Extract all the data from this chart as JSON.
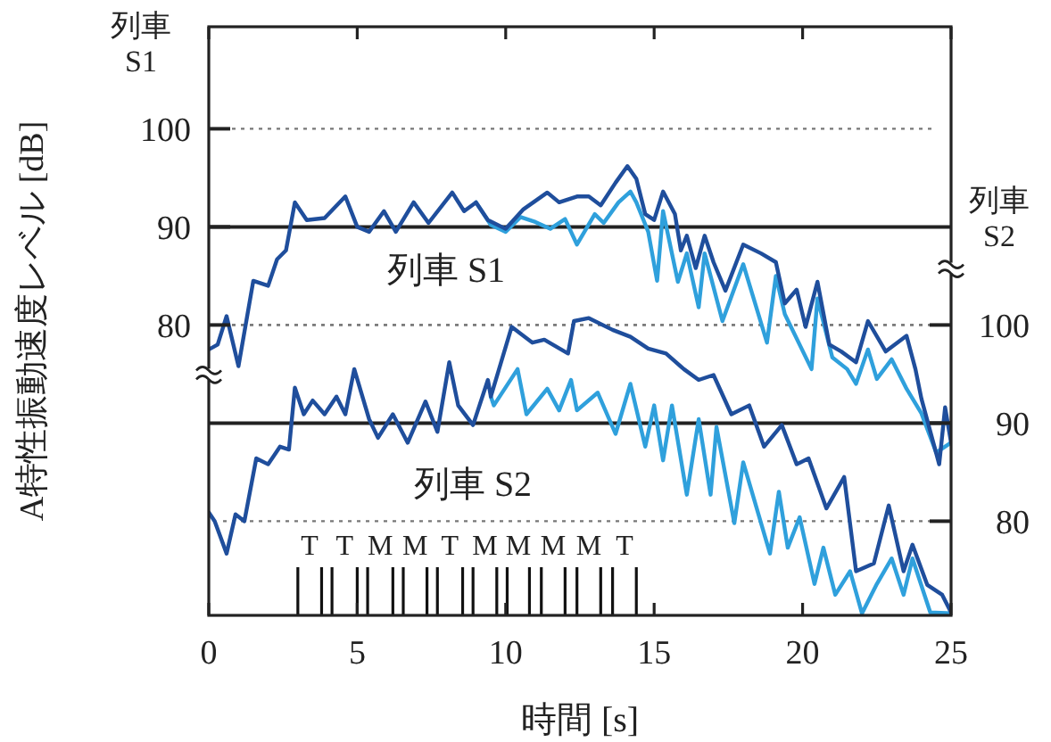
{
  "chart_data": {
    "type": "line",
    "ylabel": "A特性振動速度レベル [dB]",
    "xlabel": "時間 [s]",
    "xlim": [
      0,
      25
    ],
    "xticks": [
      0,
      5,
      10,
      15,
      20,
      25
    ],
    "ylim": [
      50.4,
      110.4
    ],
    "yticks": [
      80,
      90,
      100
    ],
    "y2lim": [
      70.4,
      130.4
    ],
    "y2ticks": [
      80,
      90,
      100
    ],
    "grid": "y",
    "marker": "none",
    "line_style": "solid",
    "series": [
      {
        "color": "#2fa0dc",
        "x": [
          9.0,
          9.5,
          10.0,
          10.5,
          11.0,
          11.5,
          12.0,
          12.4,
          13.0,
          13.3,
          13.8,
          14.2,
          14.4,
          14.8,
          15.1,
          15.3,
          15.8,
          16.1,
          16.5,
          16.7,
          17.3,
          18.0,
          18.8,
          19.1,
          19.4,
          20.3,
          20.5,
          21.0,
          21.5,
          21.8,
          22.2,
          22.5,
          23.0,
          23.5,
          24.0,
          24.5,
          25
        ],
        "values": [
          92.5,
          90.2,
          89.5,
          91,
          90.5,
          89.8,
          90.8,
          88.2,
          91.3,
          90.4,
          92.5,
          93.6,
          92.5,
          89.5,
          84.5,
          91.6,
          84.4,
          87.3,
          81.8,
          87.3,
          80.4,
          86.2,
          78.2,
          85,
          81.1,
          75.5,
          82.7,
          76.7,
          75.5,
          74,
          77.5,
          74.5,
          76.5,
          73.5,
          71,
          67,
          68
        ]
      },
      {
        "color": "#1f4e9c",
        "x": [
          0,
          0.3,
          0.6,
          1.0,
          1.5,
          2.0,
          2.3,
          2.6,
          2.9,
          3.3,
          3.9,
          4.6,
          5.0,
          5.4,
          5.9,
          6.3,
          6.9,
          7.4,
          8.2,
          8.6,
          9.0,
          9.4,
          10.0,
          10.6,
          11.4,
          11.8,
          12.4,
          12.8,
          13.2,
          13.7,
          14.1,
          14.4,
          14.7,
          15.0,
          15.3,
          15.7,
          15.9,
          16.1,
          16.4,
          16.7,
          17.0,
          17.4,
          18.0,
          18.6,
          19.1,
          19.4,
          19.8,
          20.1,
          20.5,
          20.9,
          21.3,
          21.8,
          22.2,
          22.8,
          23.5,
          23.8,
          24.0,
          24.6,
          24.8,
          25
        ],
        "values": [
          77.5,
          78,
          80.9,
          75.8,
          84.5,
          84,
          86.7,
          87.6,
          92.5,
          90.7,
          90.9,
          93.1,
          90,
          89.5,
          91.6,
          89.5,
          92.5,
          90.4,
          93.5,
          91.6,
          92.5,
          90.7,
          89.8,
          91.8,
          93.5,
          92.5,
          93.1,
          93.1,
          92.2,
          94.5,
          96.2,
          94.9,
          91.3,
          90.7,
          93.6,
          91.3,
          87.6,
          89.1,
          85.8,
          89.1,
          86.4,
          83.5,
          88.2,
          87.3,
          86.4,
          82.2,
          83.6,
          79.8,
          84.4,
          78,
          77.3,
          76.2,
          80.4,
          77.3,
          78.9,
          75.5,
          72.5,
          65.8,
          71.6,
          68
        ]
      },
      {
        "axis": "y2",
        "color": "#2fa0dc",
        "x": [
          9.5,
          9.6,
          10.4,
          10.7,
          11.4,
          11.8,
          12.2,
          12.4,
          13.1,
          13.7,
          14.2,
          14.7,
          15.0,
          15.3,
          15.6,
          16.1,
          16.5,
          16.9,
          17.1,
          17.7,
          18.0,
          18.9,
          19.2,
          19.5,
          19.9,
          20.4,
          20.7,
          21.1,
          21.6,
          22.0,
          22.5,
          23.0,
          23.4,
          23.7,
          24.3,
          25
        ],
        "values": [
          92.7,
          91.8,
          95.5,
          90.9,
          93.5,
          91.3,
          94.4,
          91.3,
          93.1,
          88.9,
          94,
          87.6,
          91.8,
          86.2,
          91.8,
          82.7,
          90.4,
          82.7,
          89.6,
          79.8,
          86,
          76.7,
          83,
          77.3,
          80.4,
          73.6,
          77.3,
          72.5,
          74.9,
          70.6,
          73.6,
          76.2,
          72.5,
          76.2,
          70.7,
          70.6
        ]
      },
      {
        "axis": "y2",
        "color": "#1f4e9c",
        "x": [
          0,
          0.2,
          0.6,
          0.9,
          1.2,
          1.6,
          2.0,
          2.4,
          2.7,
          2.9,
          3.2,
          3.5,
          3.9,
          4.3,
          4.6,
          4.9,
          5.4,
          5.7,
          6.2,
          6.7,
          7.3,
          7.7,
          8.1,
          8.4,
          8.9,
          9.4,
          9.5,
          10.2,
          10.9,
          11.3,
          12.1,
          12.3,
          12.8,
          13.6,
          14.2,
          14.8,
          15.4,
          16.0,
          16.5,
          17.0,
          17.6,
          18.2,
          18.7,
          19.3,
          19.8,
          20.2,
          20.8,
          21.4,
          21.8,
          22.4,
          22.9,
          23.4,
          23.7,
          24.2,
          24.7,
          25
        ],
        "values": [
          80.9,
          80,
          76.7,
          80.7,
          80,
          86.4,
          85.8,
          87.6,
          87.3,
          93.6,
          90.9,
          92.3,
          90.9,
          92.7,
          90.9,
          95.5,
          90.4,
          88.5,
          90.9,
          88,
          92.2,
          89.1,
          96.2,
          91.8,
          89.8,
          94.4,
          92.7,
          99.8,
          98.2,
          98.5,
          97.1,
          100.4,
          100.7,
          99.5,
          98.8,
          97.6,
          97.1,
          95.5,
          94.4,
          94.9,
          90.9,
          91.8,
          87.6,
          89.8,
          85.8,
          86.4,
          81.3,
          84.5,
          74.9,
          75.7,
          81.6,
          74.9,
          77.6,
          73.5,
          72.5,
          70.7
        ]
      }
    ],
    "ref_lines": [
      {
        "axis": "x",
        "value": 3.0
      },
      {
        "axis": "x",
        "value": 3.8
      },
      {
        "axis": "x",
        "value": 4.15
      },
      {
        "axis": "x",
        "value": 5.0
      },
      {
        "axis": "x",
        "value": 5.35
      },
      {
        "axis": "x",
        "value": 6.2
      },
      {
        "axis": "x",
        "value": 6.55
      },
      {
        "axis": "x",
        "value": 7.35
      },
      {
        "axis": "x",
        "value": 7.7
      },
      {
        "axis": "x",
        "value": 8.55
      },
      {
        "axis": "x",
        "value": 8.9
      },
      {
        "axis": "x",
        "value": 9.7
      },
      {
        "axis": "x",
        "value": 10.05
      },
      {
        "axis": "x",
        "value": 10.8
      },
      {
        "axis": "x",
        "value": 11.2
      },
      {
        "axis": "x",
        "value": 12.0
      },
      {
        "axis": "x",
        "value": 12.4
      },
      {
        "axis": "x",
        "value": 13.2
      },
      {
        "axis": "x",
        "value": 13.6
      },
      {
        "axis": "x",
        "value": 14.4
      }
    ],
    "annotations": [
      "列車 S1",
      "列車 S2",
      "列車 S1",
      "列車 S2",
      "T",
      "T",
      "M",
      "M",
      "T",
      "M",
      "M",
      "M",
      "M",
      "T"
    ]
  }
}
